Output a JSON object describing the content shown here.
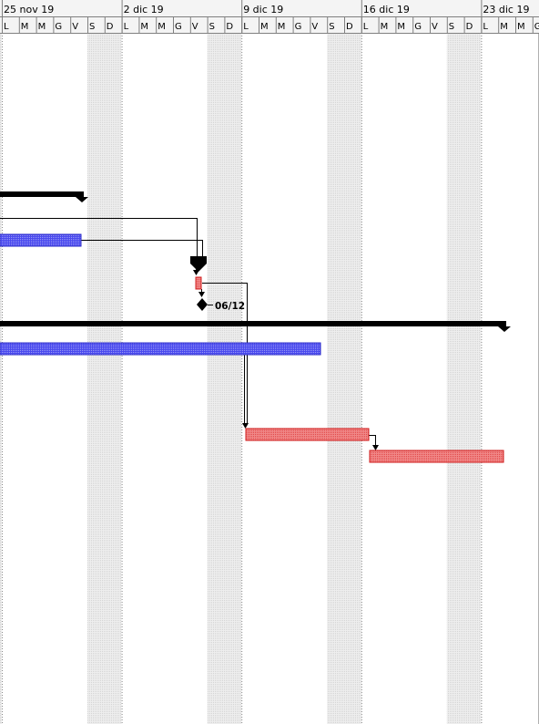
{
  "timescale": {
    "weeks": [
      {
        "label": "25 nov 19"
      },
      {
        "label": "2 dic 19"
      },
      {
        "label": "9 dic 19"
      },
      {
        "label": "16 dic 19"
      },
      {
        "label": "23 dic 19"
      }
    ],
    "day_letters": [
      "L",
      "M",
      "M",
      "G",
      "V",
      "S",
      "D"
    ]
  },
  "colors": {
    "summary": "#000000",
    "task": "#3a3ae6",
    "task_fill": "#6f6ff2",
    "critical": "#e03838",
    "critical_fill": "#f29a9a",
    "weekend_shade": "#e6e6e6",
    "grid_line": "#9a9a9a"
  },
  "tasks": [
    {
      "id": "summary-1",
      "kind": "summary",
      "start": "2019-11-22",
      "end": "2019-11-30"
    },
    {
      "id": "task-blue-1",
      "kind": "task",
      "start": "2019-11-22",
      "end": "2019-11-29"
    },
    {
      "id": "summary-2",
      "kind": "summary",
      "start": "2019-12-06",
      "end": "2019-12-06"
    },
    {
      "id": "task-red-1",
      "kind": "critical",
      "start": "2019-12-06",
      "end": "2019-12-06"
    },
    {
      "id": "milestone-1",
      "kind": "milestone",
      "start": "2019-12-06",
      "label": "06/12"
    },
    {
      "id": "summary-3",
      "kind": "summary",
      "start": "2019-11-22",
      "end": "2019-12-26"
    },
    {
      "id": "task-blue-2",
      "kind": "task",
      "start": "2019-11-22",
      "end": "2019-12-12"
    },
    {
      "id": "task-red-2",
      "kind": "critical",
      "start": "2019-12-09",
      "end": "2019-12-19"
    },
    {
      "id": "task-red-3",
      "kind": "critical",
      "start": "2019-12-16",
      "end": "2019-12-26"
    }
  ]
}
